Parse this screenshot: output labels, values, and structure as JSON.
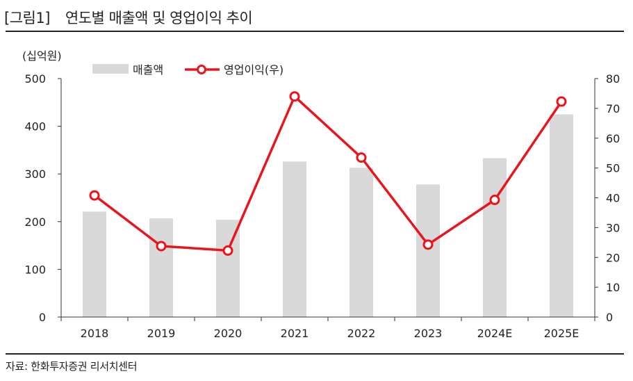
{
  "header": {
    "figure_no": "[그림1]",
    "title": "연도별 매출액 및 영업이익 추이"
  },
  "source": "자료: 한화투자증권 리서치센터",
  "chart_data": {
    "type": "bar",
    "unit": "(십억원)",
    "categories": [
      "2018",
      "2019",
      "2020",
      "2021",
      "2022",
      "2023",
      "2024E",
      "2025E"
    ],
    "series": [
      {
        "name": "매출액",
        "type": "bar",
        "axis": "left",
        "color": "#d9d9d9",
        "values": [
          221,
          207,
          204,
          326,
          313,
          278,
          333,
          425
        ]
      },
      {
        "name": "영업이익(우)",
        "type": "line",
        "axis": "right",
        "color": "#e8161c",
        "values": [
          40.8,
          23.8,
          22.3,
          74.0,
          53.5,
          24.3,
          39.3,
          72.3
        ]
      }
    ],
    "y_left": {
      "min": 0,
      "max": 500,
      "ticks": [
        0,
        100,
        200,
        300,
        400,
        500
      ]
    },
    "y_right": {
      "min": 0,
      "max": 80,
      "ticks": [
        0,
        10,
        20,
        30,
        40,
        50,
        60,
        70,
        80
      ]
    },
    "grid": false,
    "legend": "top-left"
  }
}
